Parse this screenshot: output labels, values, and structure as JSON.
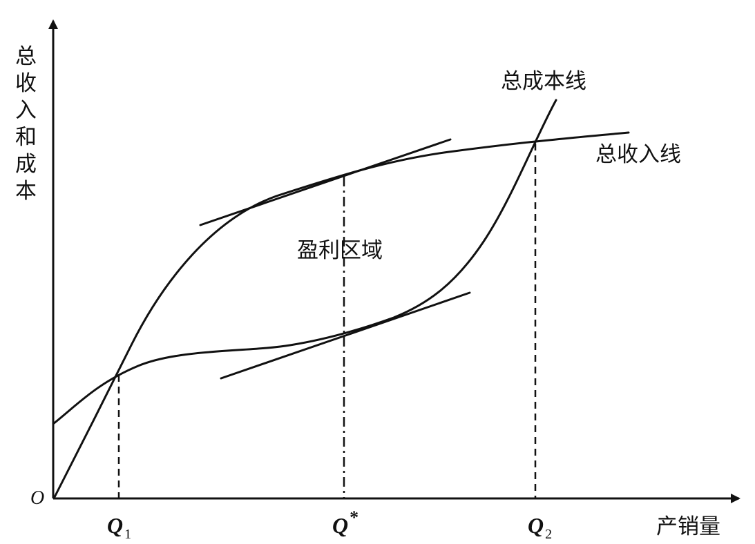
{
  "y_axis_label": "总收入和成本",
  "x_axis_label": "产销量",
  "origin_label": "O",
  "curves": {
    "total_cost_label": "总成本线",
    "total_revenue_label": "总收入线"
  },
  "region_label": "盈利区域",
  "x_marks": {
    "q1": {
      "letter": "Q",
      "sub": "1"
    },
    "qstar": {
      "letter": "Q",
      "sup": "*"
    },
    "q2": {
      "letter": "Q",
      "sub": "2"
    }
  }
}
